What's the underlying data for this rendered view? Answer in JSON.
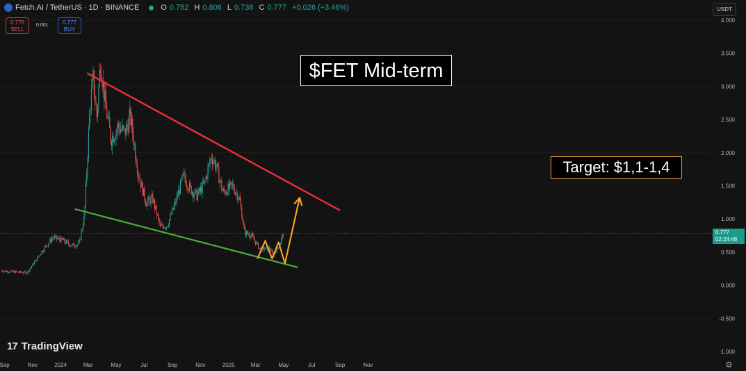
{
  "header": {
    "symbol": "Fetch.AI / TetherUS · 1D · BINANCE",
    "o_label": "O",
    "o_value": "0.752",
    "h_label": "H",
    "h_value": "0.806",
    "l_label": "L",
    "l_value": "0.738",
    "c_label": "C",
    "c_value": "0.777",
    "change": "+0.026 (+3.46%)",
    "status_color": "#26a69a"
  },
  "trade": {
    "sell_price": "0.776",
    "sell_label": "SELL",
    "spread": "0.001",
    "buy_price": "0.777",
    "buy_label": "BUY"
  },
  "currency": "USDT",
  "last_price": {
    "value": "0.777",
    "countdown": "02:24:48"
  },
  "branding": {
    "name": "TradingView"
  },
  "annotations": {
    "title": "$FET Mid-term",
    "target": "Target: $1,1-1,4"
  },
  "chart_data": {
    "type": "candlestick",
    "y_ticks": [
      "4.000",
      "3.500",
      "3.000",
      "2.500",
      "2.000",
      "1.500",
      "1.000",
      "0.500",
      "0.000",
      "-0.500",
      "-1.000"
    ],
    "ylim": [
      -1.0,
      4.0
    ],
    "x_ticks": [
      "Sep",
      "Nov",
      "2024",
      "Mar",
      "May",
      "Jul",
      "Sep",
      "Nov",
      "2025",
      "Mar",
      "May",
      "Jul",
      "Sep",
      "Nov"
    ],
    "x_tick_dates": [
      "2023-09-01",
      "2023-11-01",
      "2024-01-01",
      "2024-03-01",
      "2024-05-01",
      "2024-07-01",
      "2024-09-01",
      "2024-11-01",
      "2025-01-01",
      "2025-03-01",
      "2025-05-01",
      "2025-07-01",
      "2025-09-01",
      "2025-11-01"
    ],
    "price_path": [
      [
        "2023-08-25",
        0.22
      ],
      [
        "2023-09-25",
        0.2
      ],
      [
        "2023-10-20",
        0.19
      ],
      [
        "2023-11-05",
        0.35
      ],
      [
        "2023-11-25",
        0.55
      ],
      [
        "2023-12-15",
        0.72
      ],
      [
        "2024-01-05",
        0.68
      ],
      [
        "2024-01-25",
        0.6
      ],
      [
        "2024-02-10",
        0.62
      ],
      [
        "2024-02-22",
        1.05
      ],
      [
        "2024-03-05",
        2.7
      ],
      [
        "2024-03-12",
        3.1
      ],
      [
        "2024-03-20",
        2.55
      ],
      [
        "2024-03-28",
        3.4
      ],
      [
        "2024-04-08",
        2.7
      ],
      [
        "2024-04-20",
        2.2
      ],
      [
        "2024-05-05",
        2.4
      ],
      [
        "2024-05-20",
        2.3
      ],
      [
        "2024-06-01",
        2.55
      ],
      [
        "2024-06-18",
        1.7
      ],
      [
        "2024-07-05",
        1.25
      ],
      [
        "2024-07-20",
        1.3
      ],
      [
        "2024-08-05",
        0.88
      ],
      [
        "2024-08-20",
        0.9
      ],
      [
        "2024-09-05",
        1.2
      ],
      [
        "2024-09-25",
        1.65
      ],
      [
        "2024-10-10",
        1.45
      ],
      [
        "2024-10-25",
        1.35
      ],
      [
        "2024-11-10",
        1.55
      ],
      [
        "2024-11-25",
        1.95
      ],
      [
        "2024-12-05",
        1.8
      ],
      [
        "2024-12-20",
        1.4
      ],
      [
        "2025-01-10",
        1.5
      ],
      [
        "2025-01-25",
        1.3
      ],
      [
        "2025-02-05",
        0.8
      ],
      [
        "2025-02-20",
        0.75
      ],
      [
        "2025-03-10",
        0.55
      ],
      [
        "2025-04-01",
        0.55
      ],
      [
        "2025-04-08",
        0.45
      ],
      [
        "2025-04-22",
        0.62
      ],
      [
        "2025-04-30",
        0.777
      ]
    ],
    "resistance_line": [
      [
        "2024-02-28",
        3.2
      ],
      [
        "2025-09-01",
        1.13
      ]
    ],
    "support_line": [
      [
        "2024-02-01",
        1.15
      ],
      [
        "2025-06-01",
        0.27
      ]
    ],
    "projection_path": [
      [
        "2025-03-05",
        0.4
      ],
      [
        "2025-03-22",
        0.67
      ],
      [
        "2025-04-06",
        0.4
      ],
      [
        "2025-04-20",
        0.65
      ],
      [
        "2025-05-04",
        0.33
      ],
      [
        "2025-06-05",
        1.32
      ]
    ],
    "colors": {
      "up": "#26a69a",
      "down": "#ef5350",
      "resistance": "#e3303a",
      "support": "#4caf3c",
      "projection": "#f0a030",
      "price_line": "#26a69a"
    }
  }
}
